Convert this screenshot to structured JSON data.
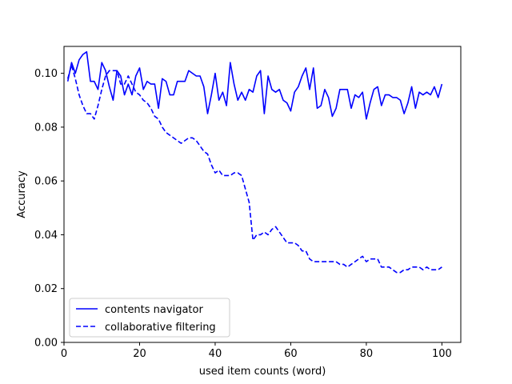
{
  "chart_data": {
    "type": "line",
    "xlabel": "used item counts (word)",
    "ylabel": "Accuracy",
    "xlim": [
      0,
      105
    ],
    "ylim": [
      0,
      0.11
    ],
    "xticks": [
      0,
      20,
      40,
      60,
      80,
      100
    ],
    "xtick_labels": [
      "0",
      "20",
      "40",
      "60",
      "80",
      "100"
    ],
    "yticks": [
      0.0,
      0.02,
      0.04,
      0.06,
      0.08,
      0.1
    ],
    "ytick_labels": [
      "0.00",
      "0.02",
      "0.04",
      "0.06",
      "0.08",
      "0.10"
    ],
    "grid": false,
    "legend_position": "lower-left",
    "series": [
      {
        "name": "contents navigator",
        "color": "#0000ff",
        "style": "solid",
        "x": [
          1,
          2,
          3,
          4,
          5,
          6,
          7,
          8,
          9,
          10,
          11,
          12,
          13,
          14,
          15,
          16,
          17,
          18,
          19,
          20,
          21,
          22,
          23,
          24,
          25,
          26,
          27,
          28,
          29,
          30,
          31,
          32,
          33,
          34,
          35,
          36,
          37,
          38,
          39,
          40,
          41,
          42,
          43,
          44,
          45,
          46,
          47,
          48,
          49,
          50,
          51,
          52,
          53,
          54,
          55,
          56,
          57,
          58,
          59,
          60,
          61,
          62,
          63,
          64,
          65,
          66,
          67,
          68,
          69,
          70,
          71,
          72,
          73,
          74,
          75,
          76,
          77,
          78,
          79,
          80,
          81,
          82,
          83,
          84,
          85,
          86,
          87,
          88,
          89,
          90,
          91,
          92,
          93,
          94,
          95,
          96,
          97,
          98,
          99,
          100
        ],
        "y": [
          0.097,
          0.104,
          0.1,
          0.105,
          0.107,
          0.108,
          0.097,
          0.097,
          0.094,
          0.104,
          0.101,
          0.095,
          0.09,
          0.101,
          0.099,
          0.092,
          0.096,
          0.092,
          0.099,
          0.102,
          0.094,
          0.097,
          0.096,
          0.096,
          0.087,
          0.098,
          0.097,
          0.092,
          0.092,
          0.097,
          0.097,
          0.097,
          0.101,
          0.1,
          0.099,
          0.099,
          0.095,
          0.085,
          0.092,
          0.1,
          0.09,
          0.093,
          0.088,
          0.104,
          0.096,
          0.09,
          0.093,
          0.09,
          0.094,
          0.093,
          0.099,
          0.101,
          0.085,
          0.099,
          0.094,
          0.093,
          0.094,
          0.09,
          0.089,
          0.086,
          0.093,
          0.095,
          0.099,
          0.102,
          0.094,
          0.102,
          0.087,
          0.088,
          0.094,
          0.091,
          0.084,
          0.087,
          0.094,
          0.094,
          0.094,
          0.087,
          0.092,
          0.091,
          0.093,
          0.083,
          0.089,
          0.094,
          0.095,
          0.088,
          0.092,
          0.092,
          0.091,
          0.091,
          0.09,
          0.085,
          0.089,
          0.095,
          0.087,
          0.093,
          0.092,
          0.093,
          0.092,
          0.095,
          0.091,
          0.096
        ]
      },
      {
        "name": "collaborative filtering",
        "color": "#0000ff",
        "style": "dashed",
        "x": [
          1,
          2,
          3,
          4,
          5,
          6,
          7,
          8,
          9,
          10,
          11,
          12,
          13,
          14,
          15,
          16,
          17,
          18,
          19,
          20,
          21,
          22,
          23,
          24,
          25,
          26,
          27,
          28,
          29,
          30,
          31,
          32,
          33,
          34,
          35,
          36,
          37,
          38,
          39,
          40,
          41,
          42,
          43,
          44,
          45,
          46,
          47,
          48,
          49,
          50,
          51,
          52,
          53,
          54,
          55,
          56,
          57,
          58,
          59,
          60,
          61,
          62,
          63,
          64,
          65,
          66,
          67,
          68,
          69,
          70,
          71,
          72,
          73,
          74,
          75,
          76,
          77,
          78,
          79,
          80,
          81,
          82,
          83,
          84,
          85,
          86,
          87,
          88,
          89,
          90,
          91,
          92,
          93,
          94,
          95,
          96,
          97,
          98,
          99,
          100
        ],
        "y": [
          0.098,
          0.103,
          0.098,
          0.092,
          0.088,
          0.085,
          0.085,
          0.083,
          0.088,
          0.094,
          0.099,
          0.101,
          0.101,
          0.101,
          0.096,
          0.096,
          0.099,
          0.096,
          0.093,
          0.092,
          0.09,
          0.089,
          0.087,
          0.084,
          0.083,
          0.08,
          0.078,
          0.077,
          0.076,
          0.075,
          0.074,
          0.075,
          0.076,
          0.076,
          0.075,
          0.073,
          0.071,
          0.07,
          0.066,
          0.063,
          0.064,
          0.062,
          0.062,
          0.062,
          0.063,
          0.063,
          0.062,
          0.057,
          0.052,
          0.038,
          0.04,
          0.04,
          0.041,
          0.04,
          0.042,
          0.043,
          0.041,
          0.039,
          0.037,
          0.037,
          0.037,
          0.036,
          0.034,
          0.034,
          0.031,
          0.03,
          0.03,
          0.03,
          0.03,
          0.03,
          0.03,
          0.03,
          0.029,
          0.029,
          0.028,
          0.029,
          0.03,
          0.031,
          0.032,
          0.03,
          0.031,
          0.031,
          0.031,
          0.028,
          0.028,
          0.028,
          0.027,
          0.026,
          0.026,
          0.027,
          0.027,
          0.028,
          0.028,
          0.028,
          0.027,
          0.028,
          0.027,
          0.027,
          0.027,
          0.028
        ]
      }
    ]
  }
}
